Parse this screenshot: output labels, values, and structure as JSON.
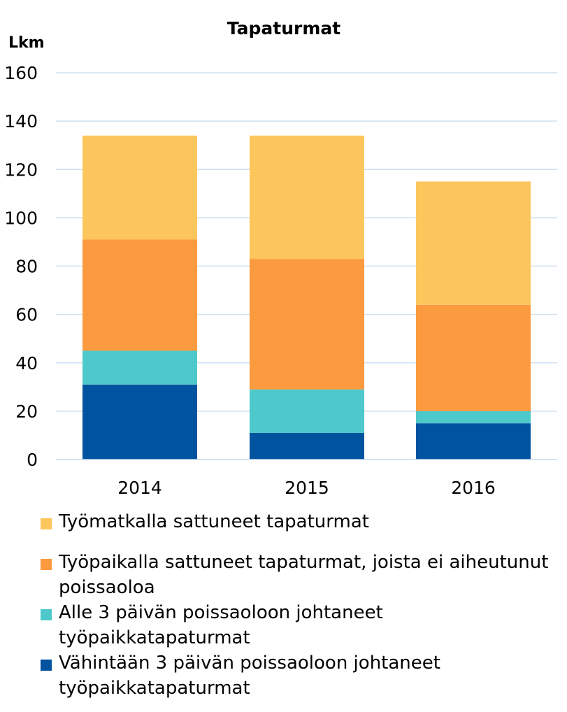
{
  "chart_data": {
    "type": "bar",
    "stacked": true,
    "title": "Tapaturmat",
    "ylabel": "Lkm",
    "xlabel": "",
    "categories": [
      "2014",
      "2015",
      "2016"
    ],
    "ylim": [
      0,
      160
    ],
    "yticks": [
      0,
      20,
      40,
      60,
      80,
      100,
      120,
      140,
      160
    ],
    "grid": true,
    "legend_position": "bottom",
    "series": [
      {
        "name": "Vähintään 3 päivän poissaoloon johtaneet työpaikkatapaturmat",
        "color": "#00539f",
        "values": [
          31,
          11,
          15
        ]
      },
      {
        "name": "Alle 3 päivän poissaoloon johtaneet työpaikkatapaturmat",
        "color": "#4dc8cb",
        "values": [
          14,
          18,
          5
        ]
      },
      {
        "name": "Työpaikalla sattuneet tapaturmat, joista ei aiheutunut poissaoloa",
        "color": "#fb9a3e",
        "values": [
          46,
          54,
          44
        ]
      },
      {
        "name": "Työmatkalla sattuneet tapaturmat",
        "color": "#fdc65c",
        "values": [
          43,
          51,
          51
        ]
      }
    ]
  }
}
